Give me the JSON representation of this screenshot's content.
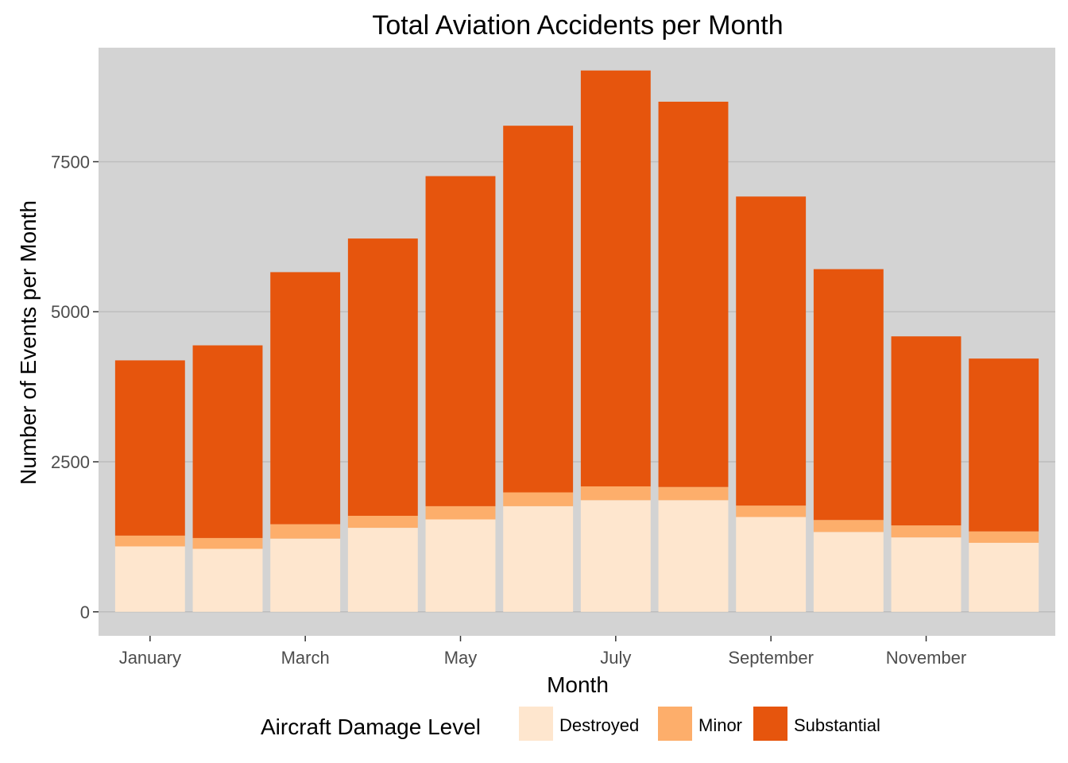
{
  "chart_data": {
    "type": "bar",
    "stacked": true,
    "title": "Total Aviation Accidents per Month",
    "xlabel": "Month",
    "ylabel": "Number of Events per Month",
    "categories": [
      "January",
      "February",
      "March",
      "April",
      "May",
      "June",
      "July",
      "August",
      "September",
      "October",
      "November",
      "December"
    ],
    "x_tick_labels": [
      "January",
      "March",
      "May",
      "July",
      "September",
      "November"
    ],
    "x_tick_categories": [
      0,
      2,
      4,
      6,
      8,
      10
    ],
    "ylim": [
      -400,
      9400
    ],
    "yticks": [
      0,
      2500,
      5000,
      7500
    ],
    "ytick_labels": [
      "0",
      "2500",
      "5000",
      "7500"
    ],
    "grid": true,
    "legend_position": "bottom",
    "legend_title": "Aircraft Damage Level",
    "series": [
      {
        "name": "Destroyed",
        "color": "#fee6ce",
        "values": [
          1090,
          1050,
          1220,
          1400,
          1540,
          1760,
          1860,
          1860,
          1580,
          1330,
          1240,
          1150
        ]
      },
      {
        "name": "Minor",
        "color": "#fdae6b",
        "values": [
          180,
          180,
          240,
          200,
          220,
          230,
          230,
          220,
          190,
          200,
          200,
          190
        ]
      },
      {
        "name": "Substantial",
        "color": "#e6550d",
        "values": [
          2920,
          3210,
          4200,
          4620,
          5500,
          6110,
          6930,
          6420,
          5150,
          4180,
          3150,
          2880
        ]
      }
    ]
  }
}
